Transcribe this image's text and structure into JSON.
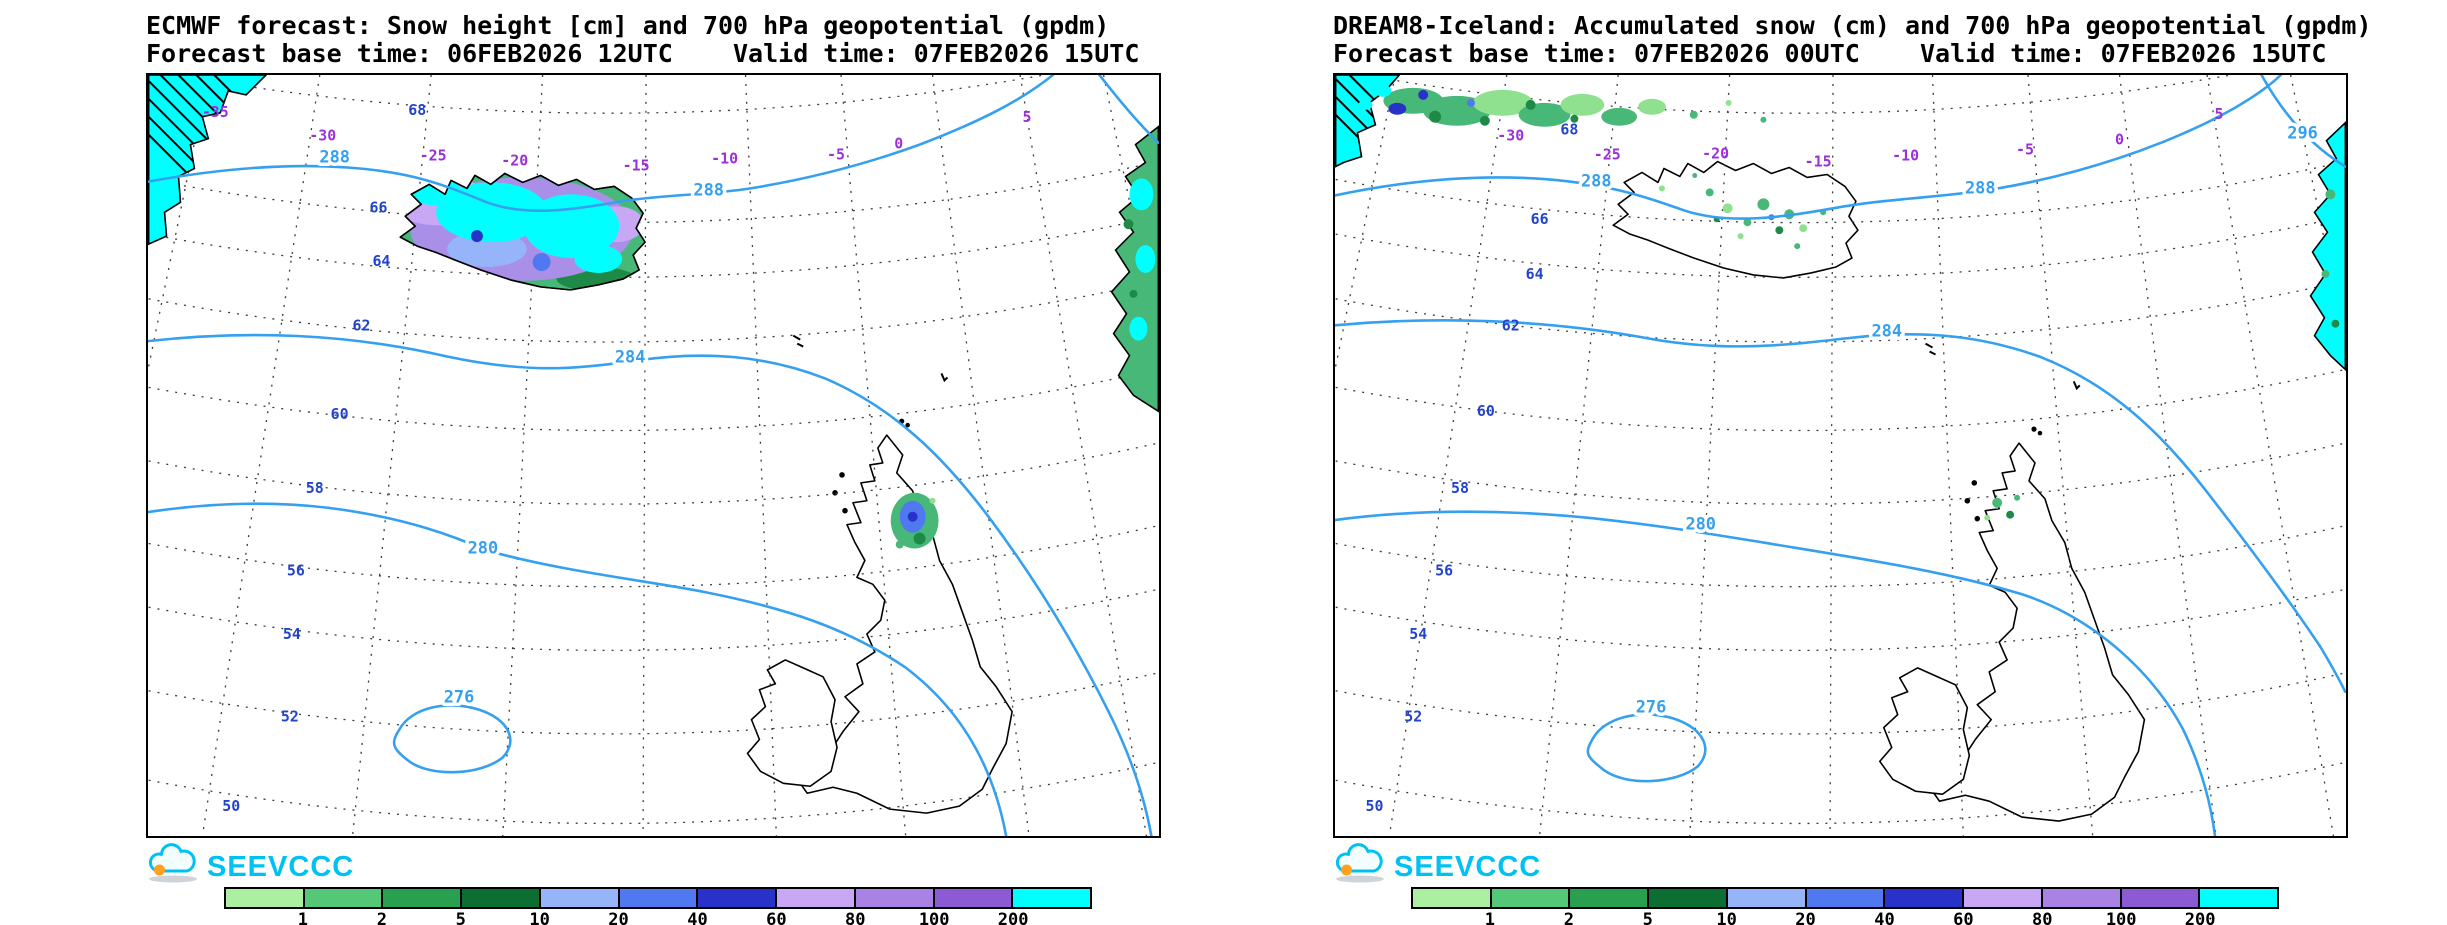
{
  "branding": {
    "logo_text": "SEEVCCC",
    "logo_color": "#00c2f2",
    "sun_color": "#ffa01e"
  },
  "colors": {
    "contour_line": "#35a0f0",
    "lat_label": "#2244cc",
    "lon_label": "#9b30d9",
    "snow_cyan": "#00ffff"
  },
  "legend": {
    "values": [
      "1",
      "2",
      "5",
      "10",
      "20",
      "40",
      "60",
      "80",
      "100",
      "200"
    ],
    "colors": [
      "#aaf0a0",
      "#55c878",
      "#28a050",
      "#0c6e32",
      "#96b4fa",
      "#5078f0",
      "#2832c8",
      "#c8a8f5",
      "#aa82e6",
      "#8c5ad2",
      "#00ffff"
    ]
  },
  "panels": [
    {
      "id": "ecmwf",
      "title": "ECMWF forecast: Snow height [cm] and 700 hPa geopotential (gpdm)",
      "subtitle": "Forecast base time: 06FEB2026 12UTC    Valid time: 07FEB2026 15UTC",
      "lon_labels": [
        "-35",
        "-30",
        "-25",
        "-20",
        "-15",
        "-10",
        "-5",
        "0",
        "5"
      ],
      "lat_labels": [
        "68",
        "66",
        "64",
        "62",
        "60",
        "58",
        "56",
        "54",
        "52",
        "50"
      ],
      "contours": {
        "l288a": "288",
        "l288b": "288",
        "l284": "284",
        "l280": "280",
        "l276": "276"
      }
    },
    {
      "id": "dream8",
      "title": "DREAM8-Iceland: Accumulated snow (cm) and 700 hPa geopotential (gpdm)",
      "subtitle": "Forecast base time: 07FEB2026 00UTC    Valid time: 07FEB2026 15UTC",
      "lon_labels": [
        "-30",
        "-25",
        "-20",
        "-15",
        "-10",
        "-5",
        "0",
        "5"
      ],
      "lat_labels": [
        "68",
        "66",
        "64",
        "62",
        "60",
        "58",
        "56",
        "54",
        "52",
        "50"
      ],
      "contours": {
        "l288a": "288",
        "l288b": "288",
        "l284": "284",
        "l280": "280",
        "l276": "276",
        "l296": "296"
      }
    }
  ]
}
